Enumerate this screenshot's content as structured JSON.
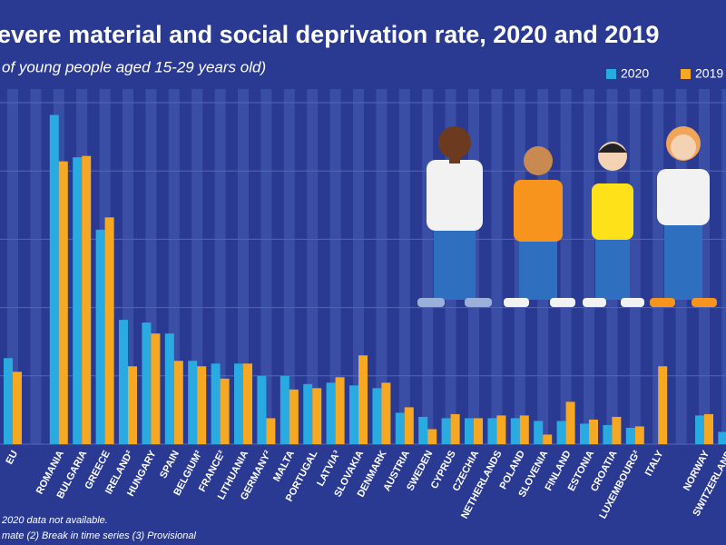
{
  "chart_data": {
    "type": "bar",
    "title": "evere material and social deprivation rate, 2020 and 2019",
    "subtitle": "of young people aged 15-29 years old)",
    "categories": [
      "EU",
      null,
      "ROMANIA",
      "BULGARIA",
      "GREECE",
      "IRELAND²",
      "HUNGARY",
      "SPAIN",
      "BELGIUM²",
      "FRANCE²",
      "LITHUANIA",
      "GERMANY²",
      "MALTA",
      "PORTUGAL",
      "LATVIA³",
      "SLOVAKIA",
      "DENMARK",
      "AUSTRIA",
      "SWEDEN",
      "CYPRUS",
      "CZECHIA",
      "NETHERLANDS",
      "POLAND",
      "SLOVENIA",
      "FINLAND",
      "ESTONIA",
      "CROATIA",
      "LUXEMBOURG²",
      "ITALY",
      null,
      "NORWAY",
      "SWITZERLAND"
    ],
    "series": [
      {
        "name": "2020",
        "color": "#29abe2",
        "values": [
          6.3,
          null,
          24.1,
          21.0,
          15.7,
          9.1,
          8.9,
          8.1,
          6.1,
          5.9,
          5.9,
          5.0,
          5.0,
          4.4,
          4.5,
          4.3,
          4.1,
          2.3,
          2.0,
          1.9,
          1.9,
          1.9,
          1.9,
          1.7,
          1.7,
          1.5,
          1.4,
          1.2,
          null,
          null,
          2.1,
          0.9
        ]
      },
      {
        "name": "2019",
        "color": "#f7a823",
        "values": [
          5.3,
          null,
          20.7,
          21.1,
          16.6,
          5.7,
          8.1,
          6.1,
          5.7,
          4.8,
          5.9,
          1.9,
          4.0,
          4.1,
          4.9,
          6.5,
          4.5,
          2.7,
          1.1,
          2.2,
          1.9,
          2.1,
          2.1,
          0.7,
          3.1,
          1.8,
          2.0,
          1.3,
          5.7,
          null,
          2.2,
          null
        ]
      }
    ],
    "ylim": [
      0,
      25
    ],
    "yticks": [
      0,
      5,
      10,
      15,
      20,
      25
    ],
    "grid": true,
    "notes": [
      "2020 data not available.",
      "mate (2) Break in time series (3) Provisional"
    ]
  }
}
